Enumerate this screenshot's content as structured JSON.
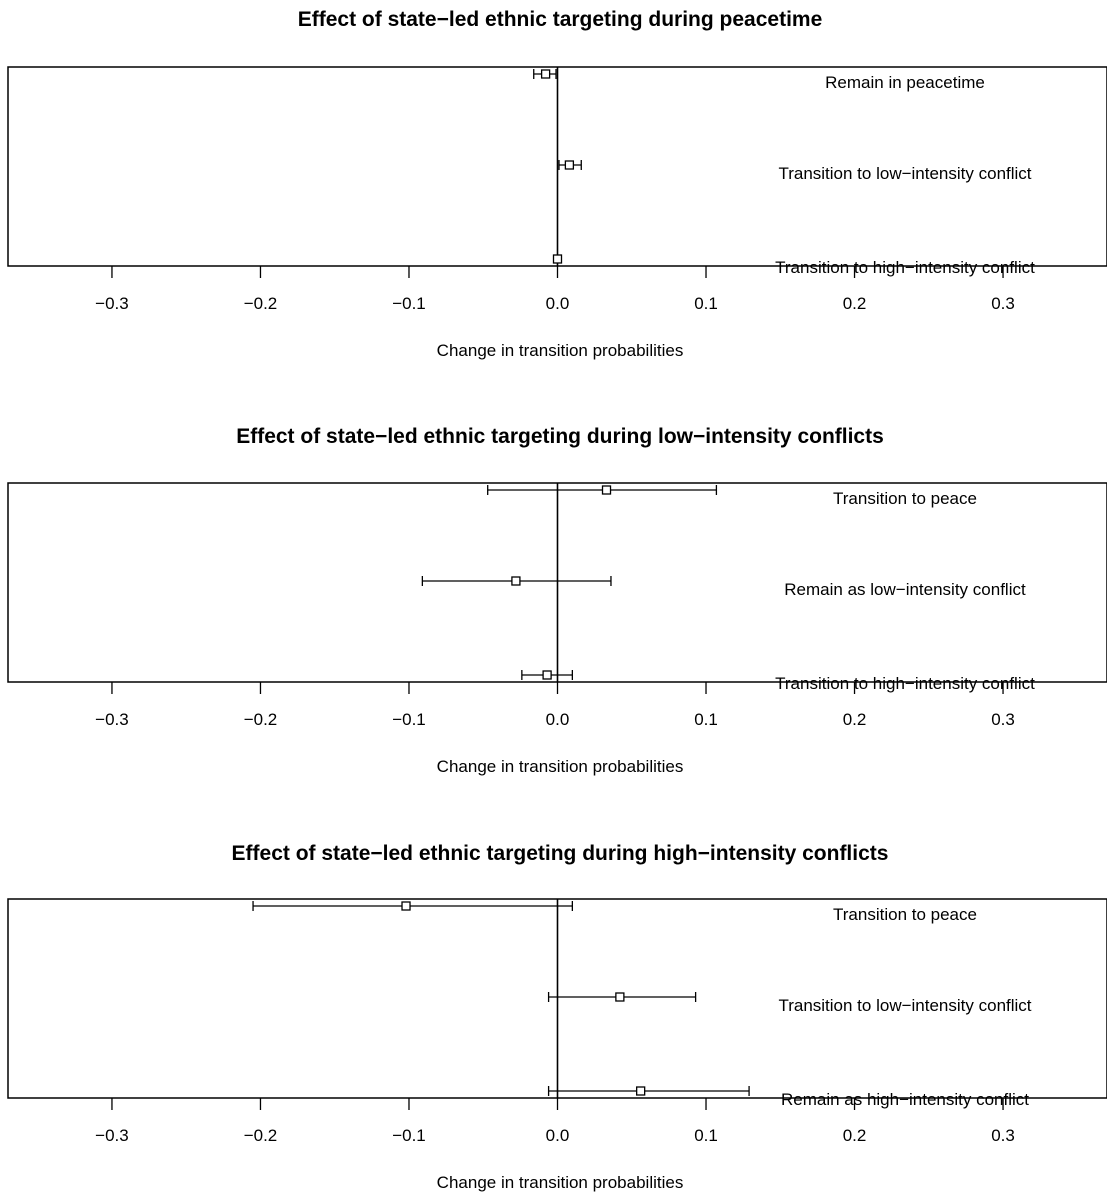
{
  "chart_data": [
    {
      "type": "scatter",
      "subtype": "coefficient-plot-with-error-bars",
      "title": "Effect of state−led ethnic targeting during peacetime",
      "xlabel": "Change in transition probabilities",
      "ylabel": "",
      "xlim": [
        -0.37,
        0.37
      ],
      "xticks": [
        -0.3,
        -0.2,
        -0.1,
        0.0,
        0.1,
        0.2,
        0.3
      ],
      "xtick_labels": [
        "−0.3",
        "−0.2",
        "−0.1",
        "0.0",
        "0.1",
        "0.2",
        "0.3"
      ],
      "reference_line": 0,
      "grid": false,
      "points": [
        {
          "label": "Remain in peacetime",
          "estimate": -0.008,
          "lower": -0.016,
          "upper": -0.001
        },
        {
          "label": "Transition to low−intensity conflict",
          "estimate": 0.008,
          "lower": 0.001,
          "upper": 0.016
        },
        {
          "label": "Transition to high−intensity conflict",
          "estimate": 0.0,
          "lower": 0.0,
          "upper": 0.0
        }
      ]
    },
    {
      "type": "scatter",
      "subtype": "coefficient-plot-with-error-bars",
      "title": "Effect of state−led ethnic targeting during low−intensity conflicts",
      "xlabel": "Change in transition probabilities",
      "ylabel": "",
      "xlim": [
        -0.37,
        0.37
      ],
      "xticks": [
        -0.3,
        -0.2,
        -0.1,
        0.0,
        0.1,
        0.2,
        0.3
      ],
      "xtick_labels": [
        "−0.3",
        "−0.2",
        "−0.1",
        "0.0",
        "0.1",
        "0.2",
        "0.3"
      ],
      "reference_line": 0,
      "grid": false,
      "points": [
        {
          "label": "Transition to peace",
          "estimate": 0.033,
          "lower": -0.047,
          "upper": 0.107
        },
        {
          "label": "Remain as low−intensity conflict",
          "estimate": -0.028,
          "lower": -0.091,
          "upper": 0.036
        },
        {
          "label": "Transition to high−intensity conflict",
          "estimate": -0.007,
          "lower": -0.024,
          "upper": 0.01
        }
      ]
    },
    {
      "type": "scatter",
      "subtype": "coefficient-plot-with-error-bars",
      "title": "Effect of state−led ethnic targeting during high−intensity conflicts",
      "xlabel": "Change in transition probabilities",
      "ylabel": "",
      "xlim": [
        -0.37,
        0.37
      ],
      "xticks": [
        -0.3,
        -0.2,
        -0.1,
        0.0,
        0.1,
        0.2,
        0.3
      ],
      "xtick_labels": [
        "−0.3",
        "−0.2",
        "−0.1",
        "0.0",
        "0.1",
        "0.2",
        "0.3"
      ],
      "reference_line": 0,
      "grid": false,
      "points": [
        {
          "label": "Transition to peace",
          "estimate": -0.102,
          "lower": -0.205,
          "upper": 0.01
        },
        {
          "label": "Transition to low−intensity conflict",
          "estimate": 0.042,
          "lower": -0.006,
          "upper": 0.093
        },
        {
          "label": "Remain as high−intensity conflict",
          "estimate": 0.056,
          "lower": -0.006,
          "upper": 0.129
        }
      ]
    }
  ]
}
